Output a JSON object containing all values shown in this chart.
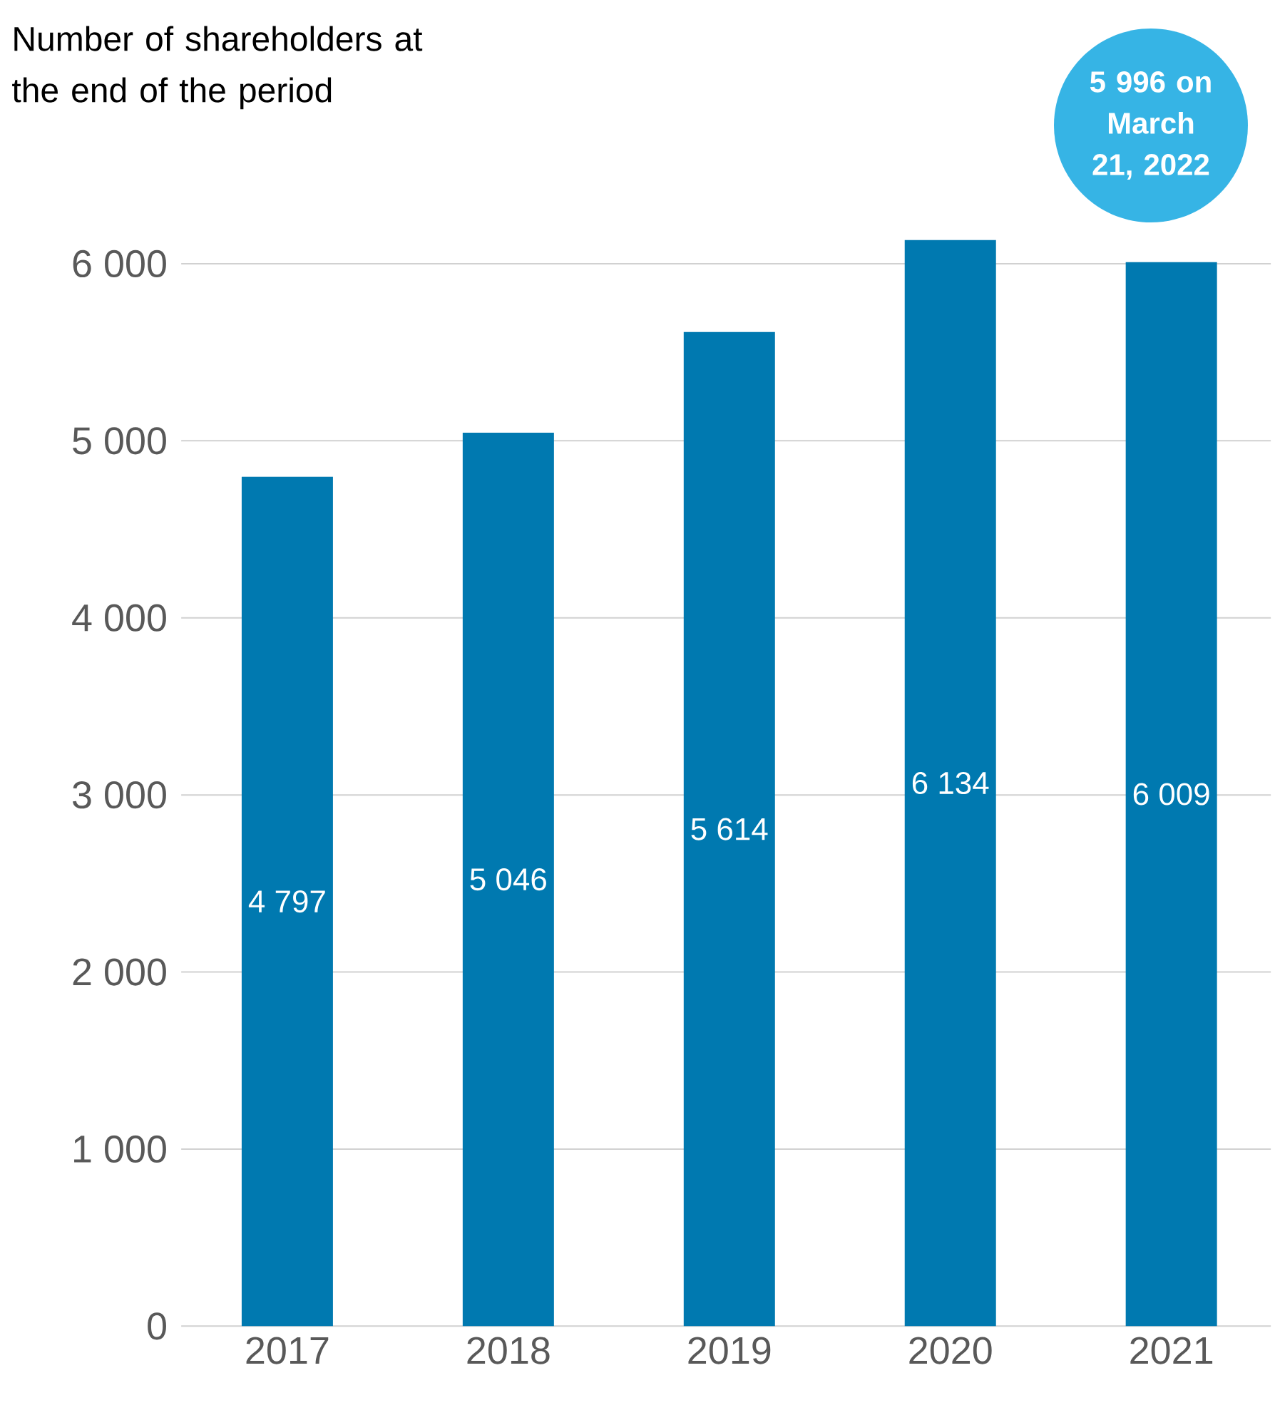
{
  "chart_data": {
    "type": "bar",
    "title": "Number of shareholders at the end of the period",
    "categories": [
      "2017",
      "2018",
      "2019",
      "2020",
      "2021"
    ],
    "values": [
      4797,
      5046,
      5614,
      6134,
      6009
    ],
    "value_labels": [
      "4 797",
      "5 046",
      "5 614",
      "6 134",
      "6 009"
    ],
    "color": "#0079b0",
    "yticks": [
      {
        "value": 0,
        "label": "0"
      },
      {
        "value": 1000,
        "label": "1 000"
      },
      {
        "value": 2000,
        "label": "2 000"
      },
      {
        "value": 3000,
        "label": "3 000"
      },
      {
        "value": 4000,
        "label": "4 000"
      },
      {
        "value": 5000,
        "label": "5 000"
      },
      {
        "value": 6000,
        "label": "6 000"
      }
    ],
    "ylim": [
      0,
      6134
    ],
    "grid": "y",
    "annotations": [
      "5 996 on March 21, 2022"
    ]
  }
}
